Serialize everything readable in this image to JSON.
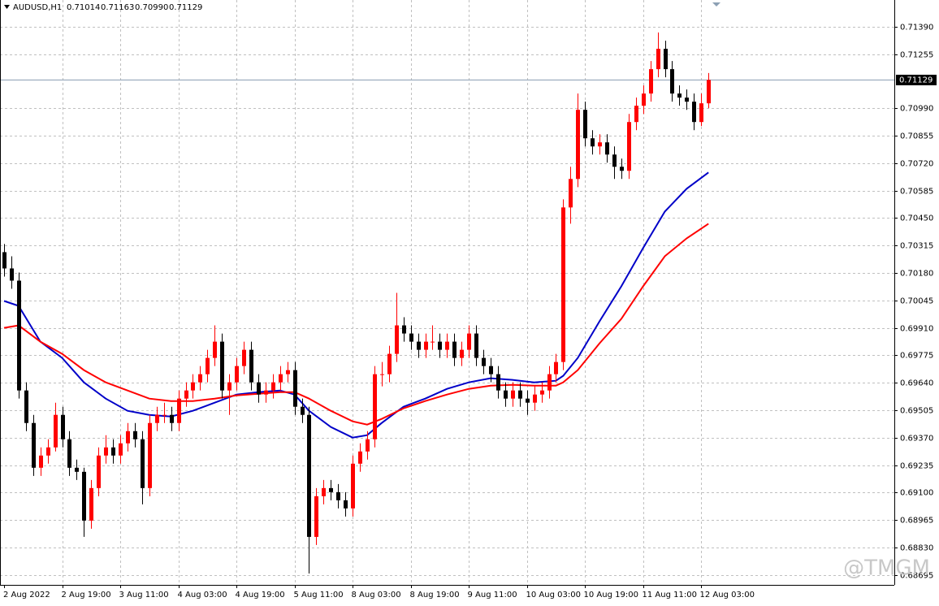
{
  "chart_data": {
    "type": "candlestick",
    "title": "AUDUSD,H1",
    "header_values": [
      "0.71014",
      "0.71163",
      "0.70990",
      "0.71129"
    ],
    "watermark": "@TMGM",
    "up_color": "#ff0000",
    "down_color": "#000000",
    "grid": true,
    "current_price": 0.71129,
    "current_price_color": "#8ca0b4",
    "ylim": [
      0.68646,
      0.71522
    ],
    "yticks": [
      {
        "value": 0.7139,
        "label": "0.71390"
      },
      0.71255,
      {
        "value": 0.7099,
        "label": "0.70990"
      },
      0.70855,
      {
        "value": 0.7072,
        "label": "0.70720"
      },
      0.70585,
      {
        "value": 0.7045,
        "label": "0.70450"
      },
      0.70315,
      {
        "value": 0.7018,
        "label": "0.70180"
      },
      0.70045,
      {
        "value": 0.6991,
        "label": "0.69910"
      },
      0.69775,
      {
        "value": 0.6964,
        "label": "0.69640"
      },
      0.69505,
      {
        "value": 0.6937,
        "label": "0.69370"
      },
      0.69235,
      {
        "value": 0.691,
        "label": "0.69100"
      },
      0.68965,
      {
        "value": 0.6883,
        "label": "0.68830"
      },
      0.68695
    ],
    "categories": [
      "2 Aug 2022",
      null,
      null,
      null,
      null,
      null,
      null,
      null,
      "2 Aug 19:00",
      null,
      null,
      null,
      null,
      null,
      null,
      null,
      "3 Aug 11:00",
      null,
      null,
      null,
      null,
      null,
      null,
      null,
      "4 Aug 03:00",
      null,
      null,
      null,
      null,
      null,
      null,
      null,
      "4 Aug 19:00",
      null,
      null,
      null,
      null,
      null,
      null,
      null,
      "5 Aug 11:00",
      null,
      null,
      null,
      null,
      null,
      null,
      null,
      "8 Aug 03:00",
      null,
      null,
      null,
      null,
      null,
      null,
      null,
      "8 Aug 19:00",
      null,
      null,
      null,
      null,
      null,
      null,
      null,
      "9 Aug 11:00",
      null,
      null,
      null,
      null,
      null,
      null,
      null,
      "10 Aug 03:00",
      null,
      null,
      null,
      null,
      null,
      null,
      null,
      "10 Aug 19:00",
      null,
      null,
      null,
      null,
      null,
      null,
      null,
      "11 Aug 11:00",
      null,
      null,
      null,
      null,
      null,
      null,
      null,
      "12 Aug 03:00",
      null
    ],
    "open": [
      0.70282,
      0.70202,
      0.70142,
      0.69602,
      0.69442,
      0.69222,
      0.69282,
      0.69322,
      0.69482,
      0.69362,
      0.69222,
      0.69202,
      0.68962,
      0.69122,
      0.69282,
      0.69322,
      0.69282,
      0.69342,
      0.69402,
      0.69362,
      0.69122,
      0.69442,
      0.69482,
      0.69482,
      0.69442,
      0.69562,
      0.69602,
      0.69642,
      0.69682,
      0.69762,
      0.69842,
      0.69602,
      0.69642,
      0.69722,
      0.69802,
      0.69642,
      0.69582,
      0.69602,
      0.69642,
      0.69682,
      0.69702,
      0.69522,
      0.69482,
      0.68882,
      0.69082,
      0.69122,
      0.69102,
      0.69062,
      0.69022,
      0.69242,
      0.69302,
      0.69362,
      0.69682,
      0.69682,
      0.69782,
      0.69922,
      0.69882,
      0.69842,
      0.69802,
      0.69842,
      0.69842,
      0.69802,
      0.69842,
      0.69762,
      0.69802,
      0.69882,
      0.69762,
      0.69722,
      0.69682,
      0.69602,
      0.69562,
      0.69602,
      0.69562,
      0.69542,
      0.69582,
      0.69602,
      0.69682,
      0.69742,
      0.70502,
      0.70642,
      0.70982,
      0.70842,
      0.70802,
      0.70822,
      0.70762,
      0.70702,
      0.70682,
      0.70922,
      0.71002,
      0.71062,
      0.71182,
      0.71282,
      0.71182,
      0.71062,
      0.71042,
      0.71022,
      0.70922,
      0.71014
    ],
    "high": [
      0.70322,
      0.70262,
      0.70182,
      0.69642,
      0.69482,
      0.69322,
      0.69362,
      0.69542,
      0.69522,
      0.69402,
      0.69262,
      0.69222,
      0.69162,
      0.69322,
      0.69382,
      0.69362,
      0.69382,
      0.69442,
      0.69442,
      0.69402,
      0.69482,
      0.69522,
      0.69542,
      0.69522,
      0.69602,
      0.69642,
      0.69682,
      0.69722,
      0.69802,
      0.69922,
      0.69882,
      0.69682,
      0.69762,
      0.69842,
      0.69842,
      0.69682,
      0.69642,
      0.69682,
      0.69722,
      0.69742,
      0.69742,
      0.69562,
      0.69522,
      0.69122,
      0.69162,
      0.69162,
      0.69142,
      0.69102,
      0.69282,
      0.69342,
      0.69402,
      0.69722,
      0.69742,
      0.69822,
      0.70082,
      0.69962,
      0.69922,
      0.69882,
      0.69882,
      0.69922,
      0.69882,
      0.69882,
      0.69882,
      0.69842,
      0.69922,
      0.69922,
      0.69802,
      0.69762,
      0.69722,
      0.69642,
      0.69642,
      0.69642,
      0.69602,
      0.69622,
      0.69642,
      0.69722,
      0.69782,
      0.70542,
      0.70702,
      0.71062,
      0.71022,
      0.70882,
      0.70862,
      0.70862,
      0.70802,
      0.70742,
      0.70962,
      0.71042,
      0.71102,
      0.71222,
      0.71362,
      0.71322,
      0.71222,
      0.71102,
      0.71082,
      0.71062,
      0.71062,
      0.71163
    ],
    "low": [
      0.70162,
      0.70102,
      0.69562,
      0.69402,
      0.69182,
      0.69182,
      0.69242,
      0.69302,
      0.69322,
      0.69182,
      0.69162,
      0.68882,
      0.68922,
      0.69082,
      0.69242,
      0.69242,
      0.69242,
      0.69302,
      0.69322,
      0.69042,
      0.69082,
      0.69402,
      0.69442,
      0.69402,
      0.69402,
      0.69522,
      0.69562,
      0.69602,
      0.69642,
      0.69722,
      0.69562,
      0.69482,
      0.69602,
      0.69682,
      0.69602,
      0.69542,
      0.69542,
      0.69562,
      0.69602,
      0.69642,
      0.69482,
      0.69442,
      0.68702,
      0.68842,
      0.69042,
      0.69062,
      0.69022,
      0.68982,
      0.68982,
      0.69202,
      0.69262,
      0.69322,
      0.69622,
      0.69642,
      0.69742,
      0.69842,
      0.69802,
      0.69762,
      0.69762,
      0.69802,
      0.69762,
      0.69762,
      0.69722,
      0.69722,
      0.69762,
      0.69722,
      0.69682,
      0.69642,
      0.69562,
      0.69522,
      0.69522,
      0.69522,
      0.69482,
      0.69502,
      0.69542,
      0.69562,
      0.69642,
      0.69702,
      0.70422,
      0.70602,
      0.70802,
      0.70762,
      0.70762,
      0.70722,
      0.70642,
      0.70642,
      0.70642,
      0.70882,
      0.70962,
      0.71022,
      0.71142,
      0.71142,
      0.71022,
      0.71002,
      0.70982,
      0.70882,
      0.70902,
      0.7099
    ],
    "close": [
      0.70202,
      0.70142,
      0.69602,
      0.69442,
      0.69222,
      0.69282,
      0.69322,
      0.69482,
      0.69362,
      0.69222,
      0.69202,
      0.68962,
      0.69122,
      0.69282,
      0.69322,
      0.69282,
      0.69342,
      0.69402,
      0.69362,
      0.69122,
      0.69442,
      0.69482,
      0.69482,
      0.69442,
      0.69562,
      0.69602,
      0.69642,
      0.69682,
      0.69762,
      0.69842,
      0.69602,
      0.69642,
      0.69722,
      0.69802,
      0.69642,
      0.69582,
      0.69602,
      0.69642,
      0.69682,
      0.69702,
      0.69522,
      0.69482,
      0.68882,
      0.69082,
      0.69122,
      0.69102,
      0.69062,
      0.69022,
      0.69242,
      0.69302,
      0.69362,
      0.69682,
      0.69682,
      0.69782,
      0.69922,
      0.69882,
      0.69842,
      0.69802,
      0.69842,
      0.69842,
      0.69802,
      0.69842,
      0.69762,
      0.69802,
      0.69882,
      0.69762,
      0.69722,
      0.69682,
      0.69602,
      0.69562,
      0.69602,
      0.69562,
      0.69542,
      0.69582,
      0.69602,
      0.69682,
      0.69742,
      0.70502,
      0.70642,
      0.70982,
      0.70842,
      0.70802,
      0.70822,
      0.70762,
      0.70702,
      0.70682,
      0.70922,
      0.71002,
      0.71062,
      0.71182,
      0.71282,
      0.71182,
      0.71062,
      0.71042,
      0.71022,
      0.70922,
      0.71014,
      0.71129
    ],
    "series": [
      {
        "color": "#0000c8",
        "x": [
          0,
          2,
          5,
          8,
          11,
          14,
          17,
          20,
          23,
          26,
          29,
          32,
          35,
          38,
          40,
          42,
          45,
          48,
          50,
          52,
          55,
          58,
          61,
          64,
          67,
          70,
          73,
          76,
          77,
          79,
          82,
          85,
          88,
          91,
          94,
          97
        ],
        "values": [
          0.70042,
          0.70018,
          0.69842,
          0.69762,
          0.69642,
          0.69562,
          0.69502,
          0.69482,
          0.69474,
          0.69502,
          0.69542,
          0.69582,
          0.69594,
          0.69602,
          0.69582,
          0.69502,
          0.69422,
          0.6937,
          0.69382,
          0.69442,
          0.69522,
          0.69562,
          0.6961,
          0.69642,
          0.69662,
          0.69654,
          0.69642,
          0.6965,
          0.69674,
          0.69762,
          0.69942,
          0.70114,
          0.70302,
          0.70482,
          0.70594,
          0.70674
        ]
      },
      {
        "color": "#ff0000",
        "x": [
          0,
          2,
          5,
          8,
          11,
          14,
          17,
          20,
          23,
          26,
          29,
          32,
          35,
          38,
          40,
          42,
          45,
          48,
          50,
          52,
          55,
          58,
          61,
          64,
          67,
          70,
          73,
          76,
          77,
          79,
          82,
          85,
          88,
          91,
          94,
          97
        ],
        "values": [
          0.6991,
          0.69922,
          0.69842,
          0.69782,
          0.69702,
          0.69642,
          0.69602,
          0.69562,
          0.6955,
          0.6955,
          0.69562,
          0.69578,
          0.69586,
          0.69594,
          0.69594,
          0.69562,
          0.69502,
          0.6945,
          0.69434,
          0.69462,
          0.69514,
          0.6955,
          0.69582,
          0.6961,
          0.69626,
          0.6963,
          0.69626,
          0.69626,
          0.69642,
          0.69702,
          0.69834,
          0.69954,
          0.70114,
          0.70262,
          0.7035,
          0.70422
        ]
      }
    ]
  }
}
